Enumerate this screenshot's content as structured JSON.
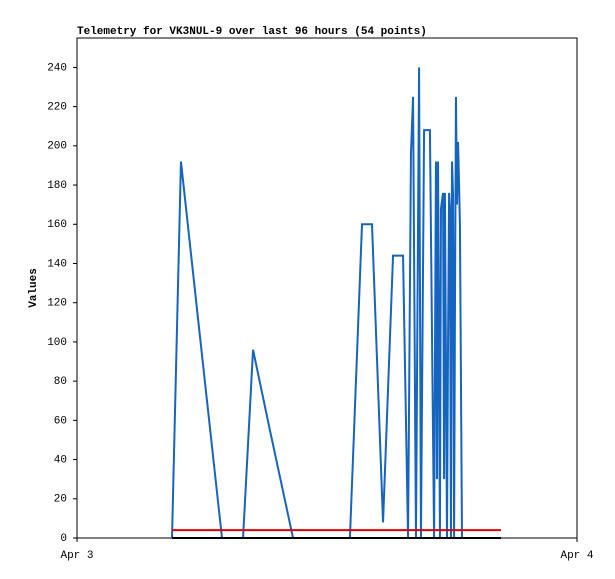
{
  "chart_data": {
    "type": "line",
    "title": "Telemetry for VK3NUL-9 over last 96 hours (54 points)",
    "ylabel": "Values",
    "xlim": [
      0,
      24
    ],
    "xticks": [
      {
        "value": 0,
        "label": "Apr 3"
      },
      {
        "value": 24,
        "label": "Apr 4"
      }
    ],
    "ylim": [
      0,
      255
    ],
    "yticks": [
      0,
      20,
      40,
      60,
      80,
      100,
      120,
      140,
      160,
      180,
      200,
      220,
      240
    ],
    "series": [
      {
        "color": "#1565c0",
        "x": [
          4.56,
          4.99,
          5.9,
          6.96,
          7.44,
          7.97,
          8.45,
          9.26,
          10.37,
          11.66,
          13.1,
          13.68,
          13.92,
          14.16,
          14.69,
          15.17,
          15.41,
          15.65,
          15.89,
          16.03,
          16.13,
          16.27,
          16.42,
          16.51,
          16.66,
          16.8,
          16.94,
          17.14,
          17.23,
          17.28,
          17.33,
          17.42,
          17.47,
          17.52,
          17.57,
          17.62,
          17.66,
          17.71,
          17.76,
          17.81,
          17.86,
          17.9,
          17.95,
          18.0,
          18.05,
          18.1,
          18.14,
          18.19,
          18.24,
          18.29,
          18.34,
          18.38,
          18.43,
          18.48
        ],
        "values": [
          0,
          192,
          103,
          0,
          0,
          0,
          96,
          55,
          0,
          0,
          0,
          160,
          160,
          160,
          8,
          144,
          144,
          144,
          0,
          196,
          225,
          0,
          240,
          0,
          208,
          208,
          208,
          0,
          192,
          30,
          192,
          0,
          168,
          172,
          176,
          30,
          176,
          90,
          0,
          100,
          176,
          168,
          0,
          192,
          175,
          0,
          112,
          225,
          170,
          202,
          180,
          160,
          80,
          0
        ]
      },
      {
        "color": "#e00000",
        "x": [
          4.56,
          20.35
        ],
        "values": [
          4,
          4
        ]
      },
      {
        "color": "#000000",
        "x": [
          4.56,
          20.35
        ],
        "values": [
          0,
          0
        ]
      }
    ]
  }
}
